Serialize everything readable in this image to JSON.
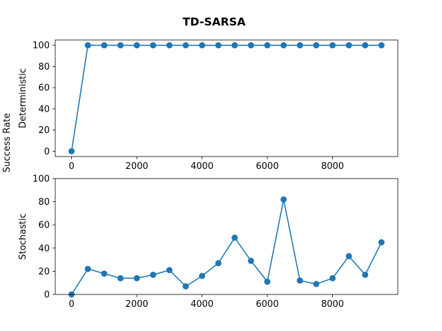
{
  "chart_data": {
    "type": "line",
    "title": "TD-SARSA",
    "shared_ylabel": "Success Rate",
    "color": "#1f77b4",
    "panels": [
      {
        "ylabel": "Deterministic",
        "xlim": [
          -500,
          10000
        ],
        "ylim": [
          -5,
          105
        ],
        "xticks": [
          0,
          2000,
          4000,
          6000,
          8000
        ],
        "yticks": [
          0,
          20,
          40,
          60,
          80,
          100
        ],
        "x": [
          0,
          500,
          1000,
          1500,
          2000,
          2500,
          3000,
          3500,
          4000,
          4500,
          5000,
          5500,
          6000,
          6500,
          7000,
          7500,
          8000,
          8500,
          9000,
          9500
        ],
        "y": [
          0,
          100,
          100,
          100,
          100,
          100,
          100,
          100,
          100,
          100,
          100,
          100,
          100,
          100,
          100,
          100,
          100,
          100,
          100,
          100
        ]
      },
      {
        "ylabel": "Stochastic",
        "xlim": [
          -500,
          10000
        ],
        "ylim": [
          0,
          100
        ],
        "xticks": [
          0,
          2000,
          4000,
          6000,
          8000
        ],
        "yticks": [
          0,
          20,
          40,
          60,
          80,
          100
        ],
        "x": [
          0,
          500,
          1000,
          1500,
          2000,
          2500,
          3000,
          3500,
          4000,
          4500,
          5000,
          5500,
          6000,
          6500,
          7000,
          7500,
          8000,
          8500,
          9000,
          9500
        ],
        "y": [
          0,
          22,
          18,
          14,
          14,
          17,
          21,
          7,
          16,
          27,
          49,
          29,
          11,
          82,
          12,
          9,
          14,
          33,
          17,
          45
        ]
      }
    ]
  }
}
